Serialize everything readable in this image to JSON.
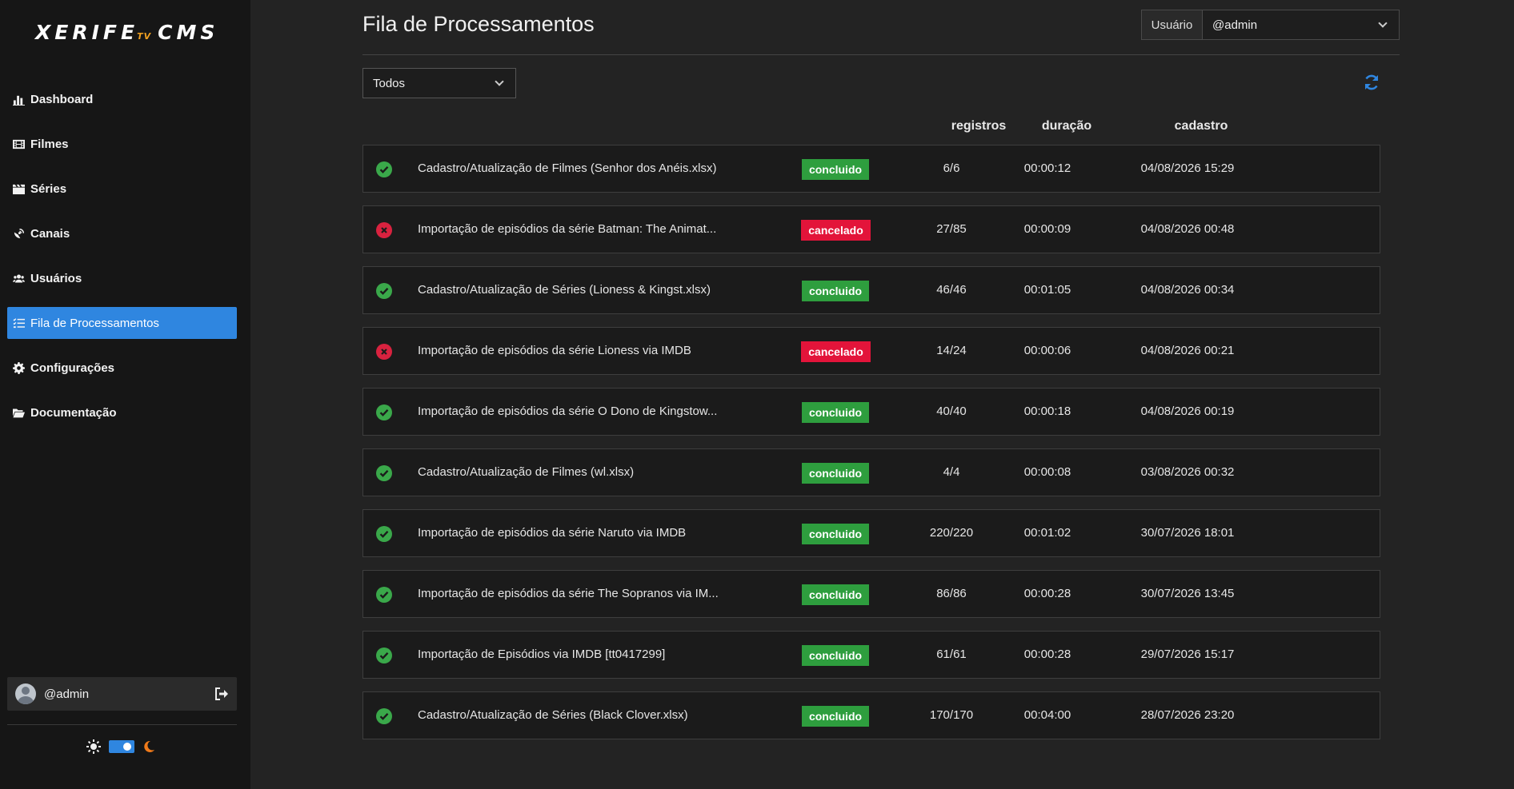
{
  "app": {
    "logo_main": "XERIFE",
    "logo_tv": "TV",
    "logo_cms": "CMS"
  },
  "sidebar": {
    "items": [
      {
        "label": "Dashboard",
        "icon": "chart-bar-icon"
      },
      {
        "label": "Filmes",
        "icon": "film-icon"
      },
      {
        "label": "Séries",
        "icon": "clapperboard-icon"
      },
      {
        "label": "Canais",
        "icon": "satellite-dish-icon"
      },
      {
        "label": "Usuários",
        "icon": "users-icon"
      },
      {
        "label": "Fila de Processamentos",
        "icon": "tasks-icon",
        "active": true
      },
      {
        "label": "Configurações",
        "icon": "gear-icon"
      },
      {
        "label": "Documentação",
        "icon": "folder-open-icon"
      }
    ],
    "user": "@admin"
  },
  "header": {
    "title": "Fila de Processamentos",
    "user_label": "Usuário",
    "user_value": "@admin"
  },
  "filter": {
    "value": "Todos"
  },
  "columns": {
    "registros": "registros",
    "duracao": "duração",
    "cadastro": "cadastro"
  },
  "colors": {
    "accent": "#2f86e0",
    "success": "#2e9e3e",
    "danger": "#e3143a"
  },
  "rows": [
    {
      "status": "ok",
      "desc": "Cadastro/Atualização de Filmes (Senhor dos Anéis.xlsx)",
      "badge": "concluido",
      "registros": "6/6",
      "duracao": "00:00:12",
      "cadastro": "04/08/2026 15:29"
    },
    {
      "status": "fail",
      "desc": "Importação de episódios da série Batman: The Animat...",
      "badge": "cancelado",
      "registros": "27/85",
      "duracao": "00:00:09",
      "cadastro": "04/08/2026 00:48"
    },
    {
      "status": "ok",
      "desc": "Cadastro/Atualização de Séries (Lioness & Kingst.xlsx)",
      "badge": "concluido",
      "registros": "46/46",
      "duracao": "00:01:05",
      "cadastro": "04/08/2026 00:34"
    },
    {
      "status": "fail",
      "desc": "Importação de episódios da série Lioness via IMDB",
      "badge": "cancelado",
      "registros": "14/24",
      "duracao": "00:00:06",
      "cadastro": "04/08/2026 00:21"
    },
    {
      "status": "ok",
      "desc": "Importação de episódios da série O Dono de Kingstow...",
      "badge": "concluido",
      "registros": "40/40",
      "duracao": "00:00:18",
      "cadastro": "04/08/2026 00:19"
    },
    {
      "status": "ok",
      "desc": "Cadastro/Atualização de Filmes (wl.xlsx)",
      "badge": "concluido",
      "registros": "4/4",
      "duracao": "00:00:08",
      "cadastro": "03/08/2026 00:32"
    },
    {
      "status": "ok",
      "desc": "Importação de episódios da série Naruto via IMDB",
      "badge": "concluido",
      "registros": "220/220",
      "duracao": "00:01:02",
      "cadastro": "30/07/2026 18:01"
    },
    {
      "status": "ok",
      "desc": "Importação de episódios da série The Sopranos via IM...",
      "badge": "concluido",
      "registros": "86/86",
      "duracao": "00:00:28",
      "cadastro": "30/07/2026 13:45"
    },
    {
      "status": "ok",
      "desc": "Importação de Episódios via IMDB [tt0417299]",
      "badge": "concluido",
      "registros": "61/61",
      "duracao": "00:00:28",
      "cadastro": "29/07/2026 15:17"
    },
    {
      "status": "ok",
      "desc": "Cadastro/Atualização de Séries (Black Clover.xlsx)",
      "badge": "concluido",
      "registros": "170/170",
      "duracao": "00:04:00",
      "cadastro": "28/07/2026 23:20"
    }
  ]
}
